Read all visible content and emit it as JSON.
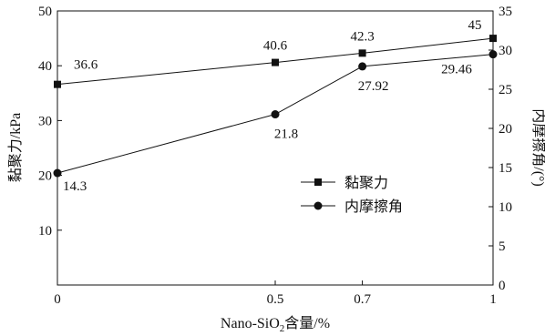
{
  "chart_data": {
    "type": "line",
    "x_positions": [
      0,
      0.5,
      0.7,
      1
    ],
    "categories": [
      "0",
      "0.5",
      "0.7",
      "1"
    ],
    "xlabel": "Nano-SiO2含量/%",
    "xlabel_parts": {
      "main": "Nano-SiO",
      "sub": "2",
      "tail": "含量/%"
    },
    "ylabel_left": "黏聚力/kPa",
    "ylabel_right": "内摩擦角/(°)",
    "ylim_left": [
      0,
      50
    ],
    "ylim_right": [
      0,
      35
    ],
    "yticks_left": [
      10,
      20,
      30,
      40,
      50
    ],
    "yticks_right": [
      0,
      5,
      10,
      15,
      20,
      25,
      30,
      35
    ],
    "series": [
      {
        "name": "黏聚力",
        "axis": "left",
        "marker": "square",
        "values": [
          36.6,
          40.6,
          42.3,
          45
        ],
        "labels": [
          "36.6",
          "40.6",
          "42.3",
          "45"
        ]
      },
      {
        "name": "内摩擦角",
        "axis": "right",
        "marker": "circle",
        "values": [
          14.3,
          21.8,
          27.92,
          29.46
        ],
        "labels": [
          "14.3",
          "21.8",
          "27.92",
          "29.46"
        ]
      }
    ],
    "legend_position": "center-right",
    "grid": false
  }
}
